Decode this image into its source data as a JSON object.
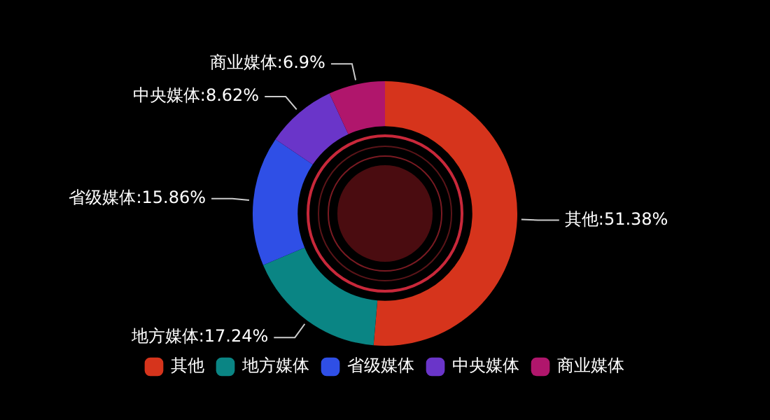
{
  "chart_data": {
    "type": "donut",
    "categories": [
      "其他",
      "地方媒体",
      "省级媒体",
      "中央媒体",
      "商业媒体"
    ],
    "values": [
      51.38,
      17.24,
      15.86,
      8.62,
      6.9
    ],
    "value_labels": [
      ":51.38%",
      ":17.24%",
      ":15.86%",
      ":8.62%",
      ":6.9%"
    ],
    "colors": [
      "#d6341c",
      "#0a8584",
      "#2f4fe6",
      "#6a35c9",
      "#b0166c"
    ],
    "legend": "bottom"
  }
}
